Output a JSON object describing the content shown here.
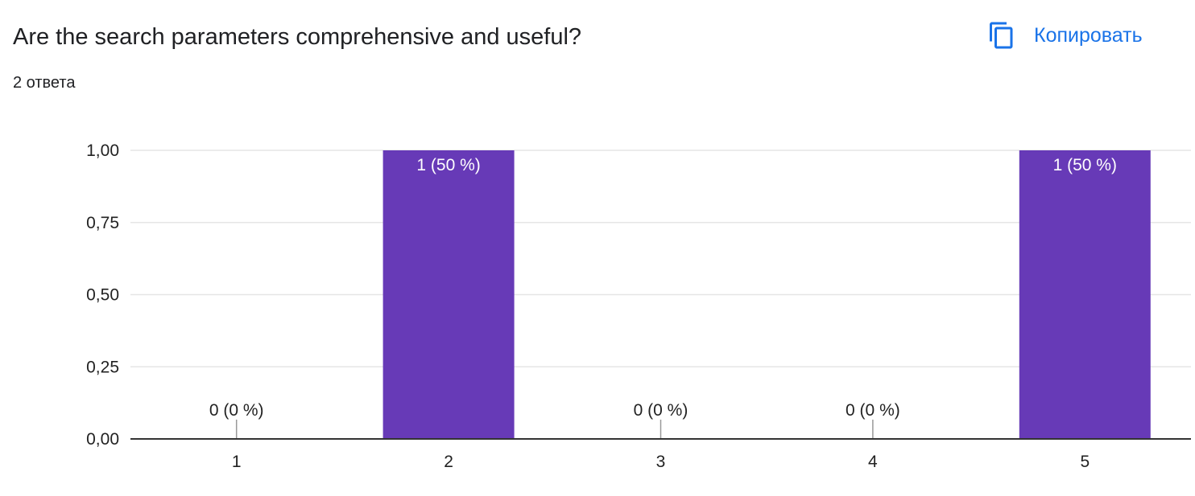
{
  "header": {
    "title": "Are the search parameters comprehensive and useful?",
    "response_count": "2 ответа",
    "copy_label": "Копировать",
    "copy_icon": "copy-icon",
    "accent_color": "#1a73e8"
  },
  "chart_data": {
    "type": "bar",
    "title": "",
    "xlabel": "",
    "ylabel": "",
    "categories": [
      "1",
      "2",
      "3",
      "4",
      "5"
    ],
    "values": [
      0,
      1,
      0,
      0,
      1
    ],
    "data_labels": [
      "0 (0 %)",
      "1 (50 %)",
      "0 (0 %)",
      "0 (0 %)",
      "1 (50 %)"
    ],
    "ylim": [
      0,
      1
    ],
    "yticks": [
      0,
      0.25,
      0.5,
      0.75,
      1
    ],
    "ytick_labels": [
      "0,00",
      "0,25",
      "0,50",
      "0,75",
      "1,00"
    ],
    "bar_color": "#673ab7",
    "grid": true,
    "legend": "none"
  }
}
